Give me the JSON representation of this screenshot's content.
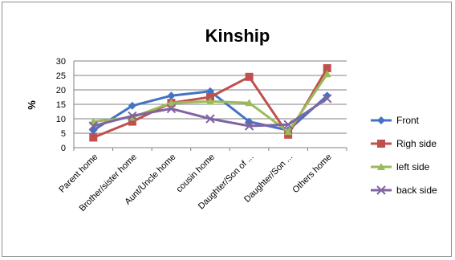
{
  "chart_data": {
    "type": "line",
    "title": "Kinship",
    "ylabel": "%",
    "xlabel": "",
    "ylim": [
      0,
      30
    ],
    "yticks": [
      0,
      5,
      10,
      15,
      20,
      25,
      30
    ],
    "grid": true,
    "legend_position": "right",
    "categories": [
      "Parent home",
      "Brother/sister home",
      "Aunt/Uncle home",
      "cousin home",
      "Daughter/Son of ...",
      "Daughter/Son ...",
      "Others home"
    ],
    "series": [
      {
        "name": "Front",
        "color": "#4472C4",
        "marker": "diamond",
        "values": [
          6,
          14.5,
          18,
          19.5,
          9,
          6,
          18
        ]
      },
      {
        "name": "Righ side",
        "color": "#C0504D",
        "marker": "square",
        "values": [
          3.5,
          9,
          15.5,
          17.5,
          24.5,
          4.5,
          27.5
        ]
      },
      {
        "name": "left side",
        "color": "#9BBB59",
        "marker": "triangle",
        "values": [
          9,
          10.5,
          15.5,
          16,
          15.5,
          5.5,
          25.5
        ]
      },
      {
        "name": "back side",
        "color": "#8064A2",
        "marker": "x",
        "values": [
          7.5,
          11,
          13.5,
          10,
          7.5,
          8,
          17
        ]
      }
    ]
  }
}
